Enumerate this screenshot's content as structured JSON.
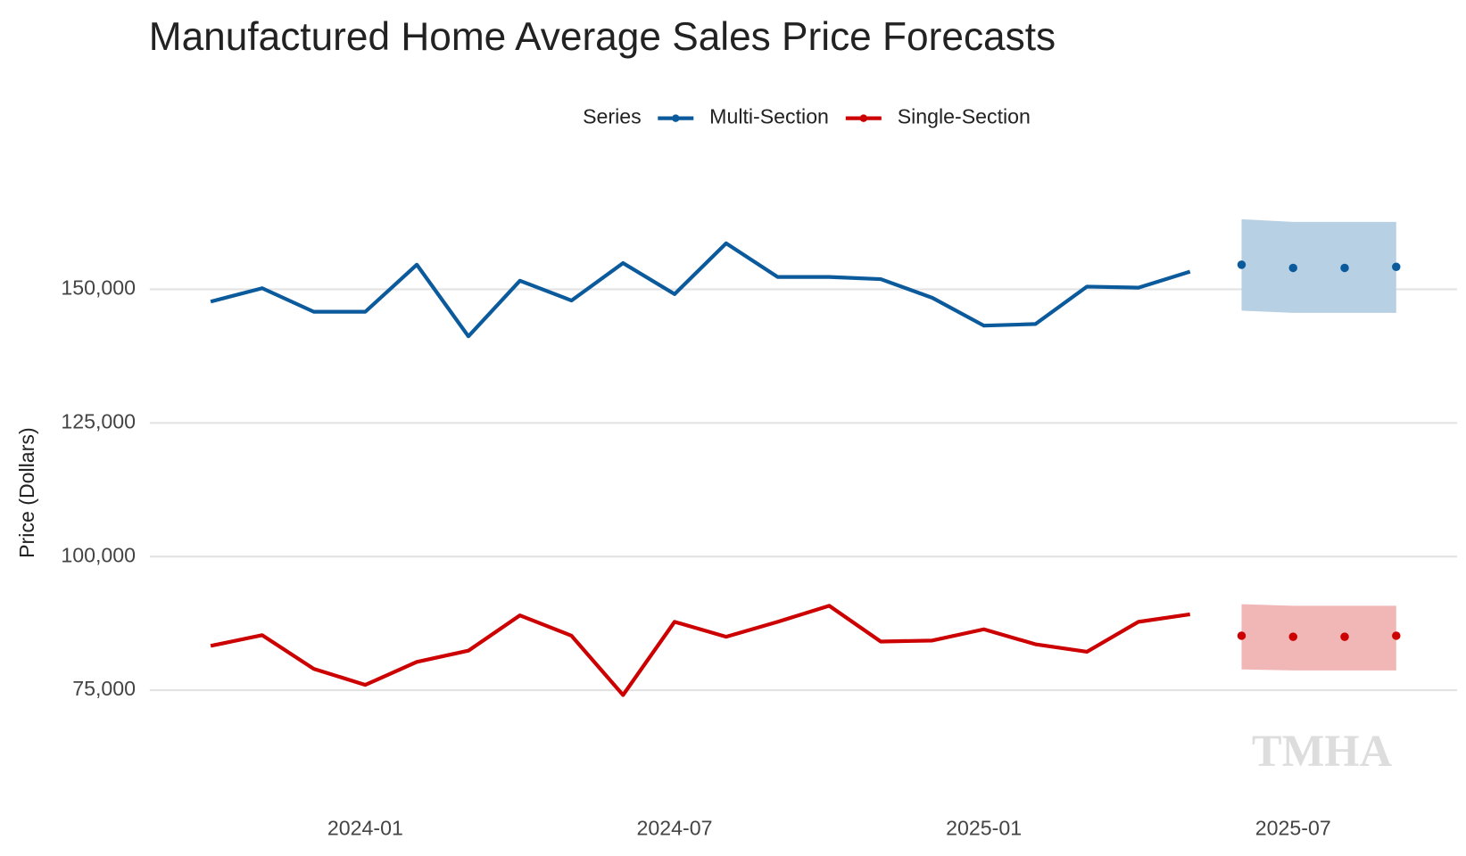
{
  "chart_data": {
    "type": "line",
    "title": "Manufactured Home Average Sales Price Forecasts",
    "y_label": "Price (Dollars)",
    "legend_title": "Series",
    "watermark": "TMHA",
    "xlim": [
      "2023-09",
      "2025-10"
    ],
    "xticks": [
      "2024-01",
      "2024-07",
      "2025-01",
      "2025-07"
    ],
    "ylim": [
      54000,
      169000
    ],
    "yticks": [
      {
        "value": 75000,
        "label": "75,000"
      },
      {
        "value": 100000,
        "label": "100,000"
      },
      {
        "value": 125000,
        "label": "125,000"
      },
      {
        "value": 150000,
        "label": "150,000"
      }
    ],
    "grid": true,
    "series": [
      {
        "name": "Multi-Section",
        "color": "#0b5a9c",
        "band_color": "#b3cde3",
        "x": [
          "2023-10",
          "2023-11",
          "2023-12",
          "2024-01",
          "2024-02",
          "2024-03",
          "2024-04",
          "2024-05",
          "2024-06",
          "2024-07",
          "2024-08",
          "2024-09",
          "2024-10",
          "2024-11",
          "2024-12",
          "2025-01",
          "2025-02",
          "2025-03",
          "2025-04",
          "2025-05"
        ],
        "values": [
          147700,
          150200,
          145800,
          145800,
          154600,
          141200,
          151600,
          147900,
          154900,
          149100,
          158600,
          152300,
          152300,
          151900,
          148400,
          143200,
          143500,
          150500,
          150300,
          153300
        ],
        "forecast": {
          "x": [
            "2025-06",
            "2025-07",
            "2025-08",
            "2025-09"
          ],
          "values": [
            154600,
            154000,
            154000,
            154200
          ],
          "lower": [
            146000,
            145600,
            145600,
            145600
          ],
          "upper": [
            163100,
            162600,
            162600,
            162600
          ]
        }
      },
      {
        "name": "Single-Section",
        "color": "#cc0000",
        "band_color": "#f0b3b3",
        "x": [
          "2023-10",
          "2023-11",
          "2023-12",
          "2024-01",
          "2024-02",
          "2024-03",
          "2024-04",
          "2024-05",
          "2024-06",
          "2024-07",
          "2024-08",
          "2024-09",
          "2024-10",
          "2024-11",
          "2024-12",
          "2025-01",
          "2025-02",
          "2025-03",
          "2025-04",
          "2025-05"
        ],
        "values": [
          83300,
          85300,
          79000,
          76000,
          80300,
          82400,
          89000,
          85200,
          74100,
          87800,
          85000,
          87800,
          90800,
          84100,
          84300,
          86400,
          83600,
          82200,
          87800,
          89200
        ],
        "forecast": {
          "x": [
            "2025-06",
            "2025-07",
            "2025-08",
            "2025-09"
          ],
          "values": [
            85200,
            85000,
            85000,
            85200
          ],
          "lower": [
            78900,
            78700,
            78700,
            78700
          ],
          "upper": [
            91100,
            90800,
            90800,
            90800
          ]
        }
      }
    ]
  }
}
